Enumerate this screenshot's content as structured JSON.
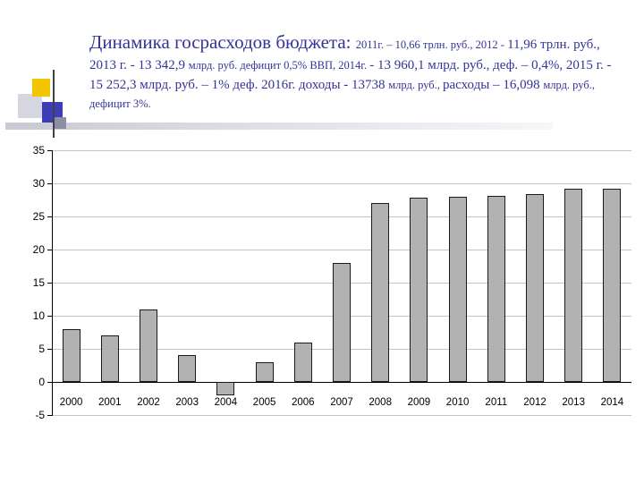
{
  "slide": {
    "title_segments": [
      {
        "size": "xl",
        "text": "Динамика госрасходов бюджета: "
      },
      {
        "size": "sm",
        "text": "2011г. – 10,66 трлн. руб., "
      },
      {
        "size": "sm",
        "text": "2012 - "
      },
      {
        "size": "md",
        "text": " 11,96 трлн. руб., 2013 г. - 13 342,9 "
      },
      {
        "size": "sm",
        "text": "млрд. руб. дефицит 0,5% ВВП, 2014г. "
      },
      {
        "size": "md",
        "text": "- 13 960,1 млрд. руб., деф. – 0,4%, 2015 г. - 15 252,3 млрд. руб. – 1% деф. "
      },
      {
        "size": "md",
        "text": " 2016г. доходы - 13738 "
      },
      {
        "size": "sm",
        "text": "млрд. руб., "
      },
      {
        "size": "md",
        "text": "расходы – 16,098 "
      },
      {
        "size": "sm",
        "text": "млрд. руб., дефицит 3%."
      }
    ],
    "title_color": "#333399"
  },
  "chart_data": {
    "type": "bar",
    "title": "",
    "xlabel": "",
    "ylabel": "",
    "categories": [
      "2000",
      "2001",
      "2002",
      "2003",
      "2004",
      "2005",
      "2006",
      "2007",
      "2008",
      "2009",
      "2010",
      "2011",
      "2012",
      "2013",
      "2014"
    ],
    "values": [
      8,
      7,
      11,
      4,
      -2,
      3,
      6,
      18,
      27,
      27.8,
      28,
      28.1,
      28.4,
      29.2,
      29.2
    ],
    "ylim": [
      -5,
      35
    ],
    "yticks": [
      35,
      30,
      25,
      20,
      15,
      10,
      5,
      0,
      -5
    ],
    "grid": true,
    "legend": false,
    "bar_color": "#b2b2b2",
    "bar_border_color": "#1a1a1a",
    "gridline_color": "#c3c3c3",
    "axis_color": "#000000"
  },
  "decoration": {
    "colors": {
      "yellow": "#f2c500",
      "blue": "#3d3db8",
      "light_gray": "#d6d6e0",
      "small_gray": "#8f8fa2",
      "line": "#404048",
      "band_start": "#c9c9d4",
      "band_end": "#f7f7fa"
    }
  }
}
